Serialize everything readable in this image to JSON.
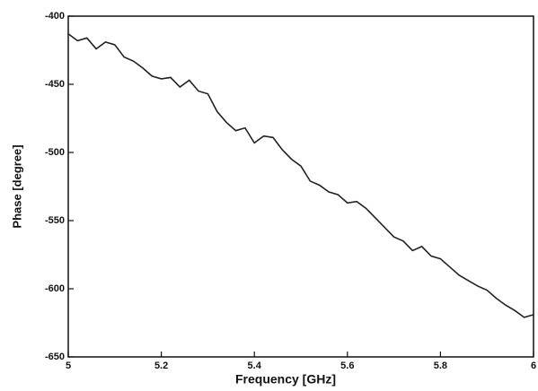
{
  "chart_data": {
    "type": "line",
    "x_label": "Frequency [GHz]",
    "y_label": "Phase [degree]",
    "x": [
      5.0,
      5.02,
      5.04,
      5.06,
      5.08,
      5.1,
      5.12,
      5.14,
      5.16,
      5.18,
      5.2,
      5.22,
      5.24,
      5.26,
      5.28,
      5.3,
      5.32,
      5.34,
      5.36,
      5.38,
      5.4,
      5.42,
      5.44,
      5.46,
      5.48,
      5.5,
      5.52,
      5.54,
      5.56,
      5.58,
      5.6,
      5.62,
      5.64,
      5.66,
      5.68,
      5.7,
      5.72,
      5.74,
      5.76,
      5.78,
      5.8,
      5.82,
      5.84,
      5.86,
      5.88,
      5.9,
      5.92,
      5.94,
      5.96,
      5.98,
      6.0
    ],
    "series": [
      {
        "color": "#222222",
        "values": [
          -413,
          -418,
          -416,
          -424,
          -419,
          -421,
          -430,
          -433,
          -438,
          -444,
          -446,
          -445,
          -452,
          -447,
          -455,
          -457,
          -470,
          -478,
          -484,
          -482,
          -493,
          -488,
          -489,
          -498,
          -505,
          -510,
          -521,
          -524,
          -529,
          -531,
          -537,
          -536,
          -541,
          -548,
          -555,
          -562,
          -565,
          -572,
          -569,
          -576,
          -578,
          -584,
          -590,
          -594,
          -598,
          -601,
          -607,
          -612,
          -616,
          -621,
          -619
        ]
      }
    ],
    "xlim": [
      5,
      6
    ],
    "xticks": [
      5,
      5.2,
      5.4,
      5.6,
      5.8,
      6
    ],
    "ylim": [
      -650,
      -400
    ],
    "yticks": [
      -400,
      -450,
      -500,
      -550,
      -600,
      -650
    ]
  }
}
